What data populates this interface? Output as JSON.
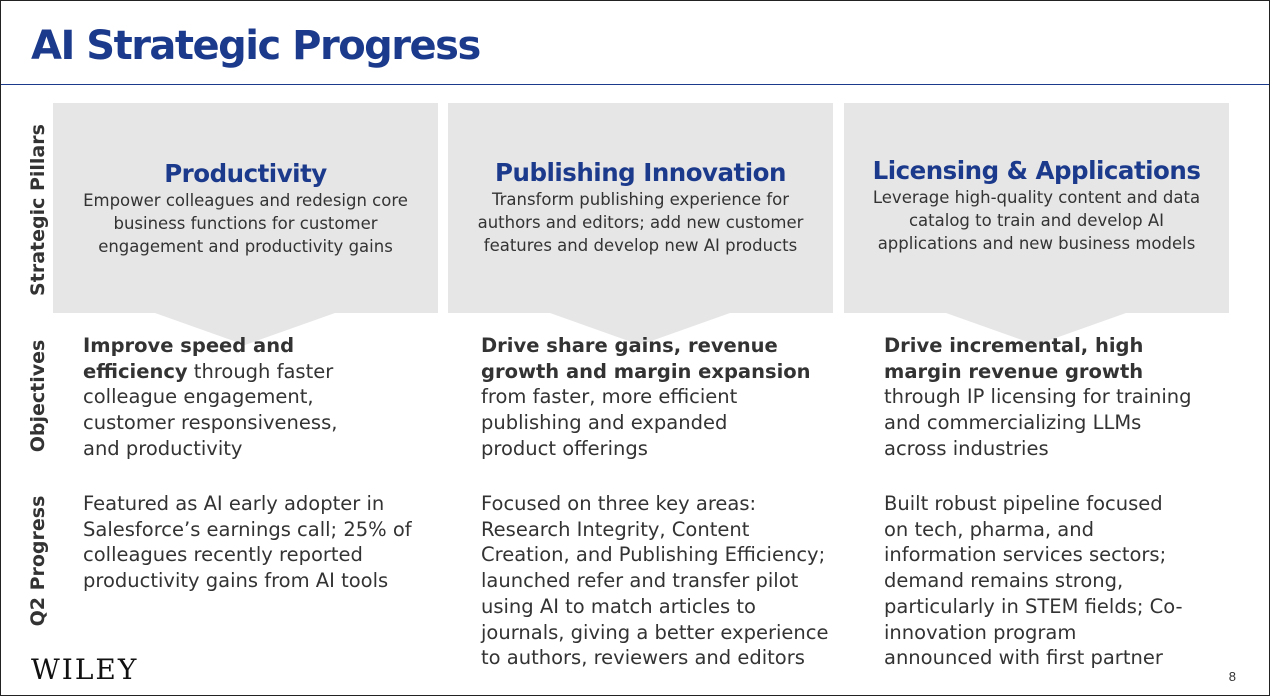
{
  "title": "AI Strategic Progress",
  "row_labels": [
    "Strategic Pillars",
    "Objectives",
    "Q2 Progress"
  ],
  "pillars": [
    {
      "title": "Productivity",
      "desc_lines": [
        "Empower colleagues and redesign core",
        "business functions for customer",
        "engagement and productivity gains"
      ]
    },
    {
      "title": "Publishing Innovation",
      "desc_lines": [
        "Transform publishing experience for",
        "authors and editors; add new customer",
        "features and develop new AI products"
      ]
    },
    {
      "title": "Licensing & Applications",
      "desc_lines": [
        "Leverage high-quality content and data",
        "catalog to train and develop AI",
        "applications and new business models"
      ]
    }
  ],
  "objectives": [
    {
      "lines": [
        {
          "bold": "Improve speed and",
          "rest": ""
        },
        {
          "bold": "efficiency",
          "rest": " through faster"
        },
        {
          "bold": "",
          "rest": "colleague engagement,"
        },
        {
          "bold": "",
          "rest": "customer responsiveness,"
        },
        {
          "bold": "",
          "rest": "and productivity"
        }
      ]
    },
    {
      "lines": [
        {
          "bold": "Drive share gains, revenue",
          "rest": ""
        },
        {
          "bold": "growth and margin expansion",
          "rest": ""
        },
        {
          "bold": "",
          "rest": "from faster, more efficient"
        },
        {
          "bold": "",
          "rest": "publishing and expanded"
        },
        {
          "bold": "",
          "rest": "product offerings"
        }
      ]
    },
    {
      "lines": [
        {
          "bold": "Drive incremental, high",
          "rest": ""
        },
        {
          "bold": "margin revenue growth",
          "rest": ""
        },
        {
          "bold": "",
          "rest": "through IP licensing for training"
        },
        {
          "bold": "",
          "rest": "and commercializing LLMs"
        },
        {
          "bold": "",
          "rest": "across industries"
        }
      ]
    }
  ],
  "progress": [
    {
      "lines": [
        "Featured as AI early adopter in",
        "Salesforce’s earnings call;  25% of",
        "colleagues recently reported",
        "productivity gains from AI tools"
      ]
    },
    {
      "lines": [
        "Focused on three key areas:",
        "Research Integrity, Content",
        "Creation, and Publishing Efficiency;",
        "launched refer and transfer pilot",
        "using AI to match articles to",
        "journals, giving a better experience",
        "to authors, reviewers and editors"
      ]
    },
    {
      "lines": [
        "Built robust pipeline focused",
        "on tech, pharma, and",
        "information services sectors;",
        "demand remains strong,",
        "particularly in STEM fields; Co-",
        "innovation program",
        "announced with first partner"
      ]
    }
  ],
  "logo": "WILEY",
  "page_number": "8",
  "colors": {
    "title": "#1c3a8c",
    "pillar_bg": "#e6e6e6",
    "text": "#333333"
  }
}
